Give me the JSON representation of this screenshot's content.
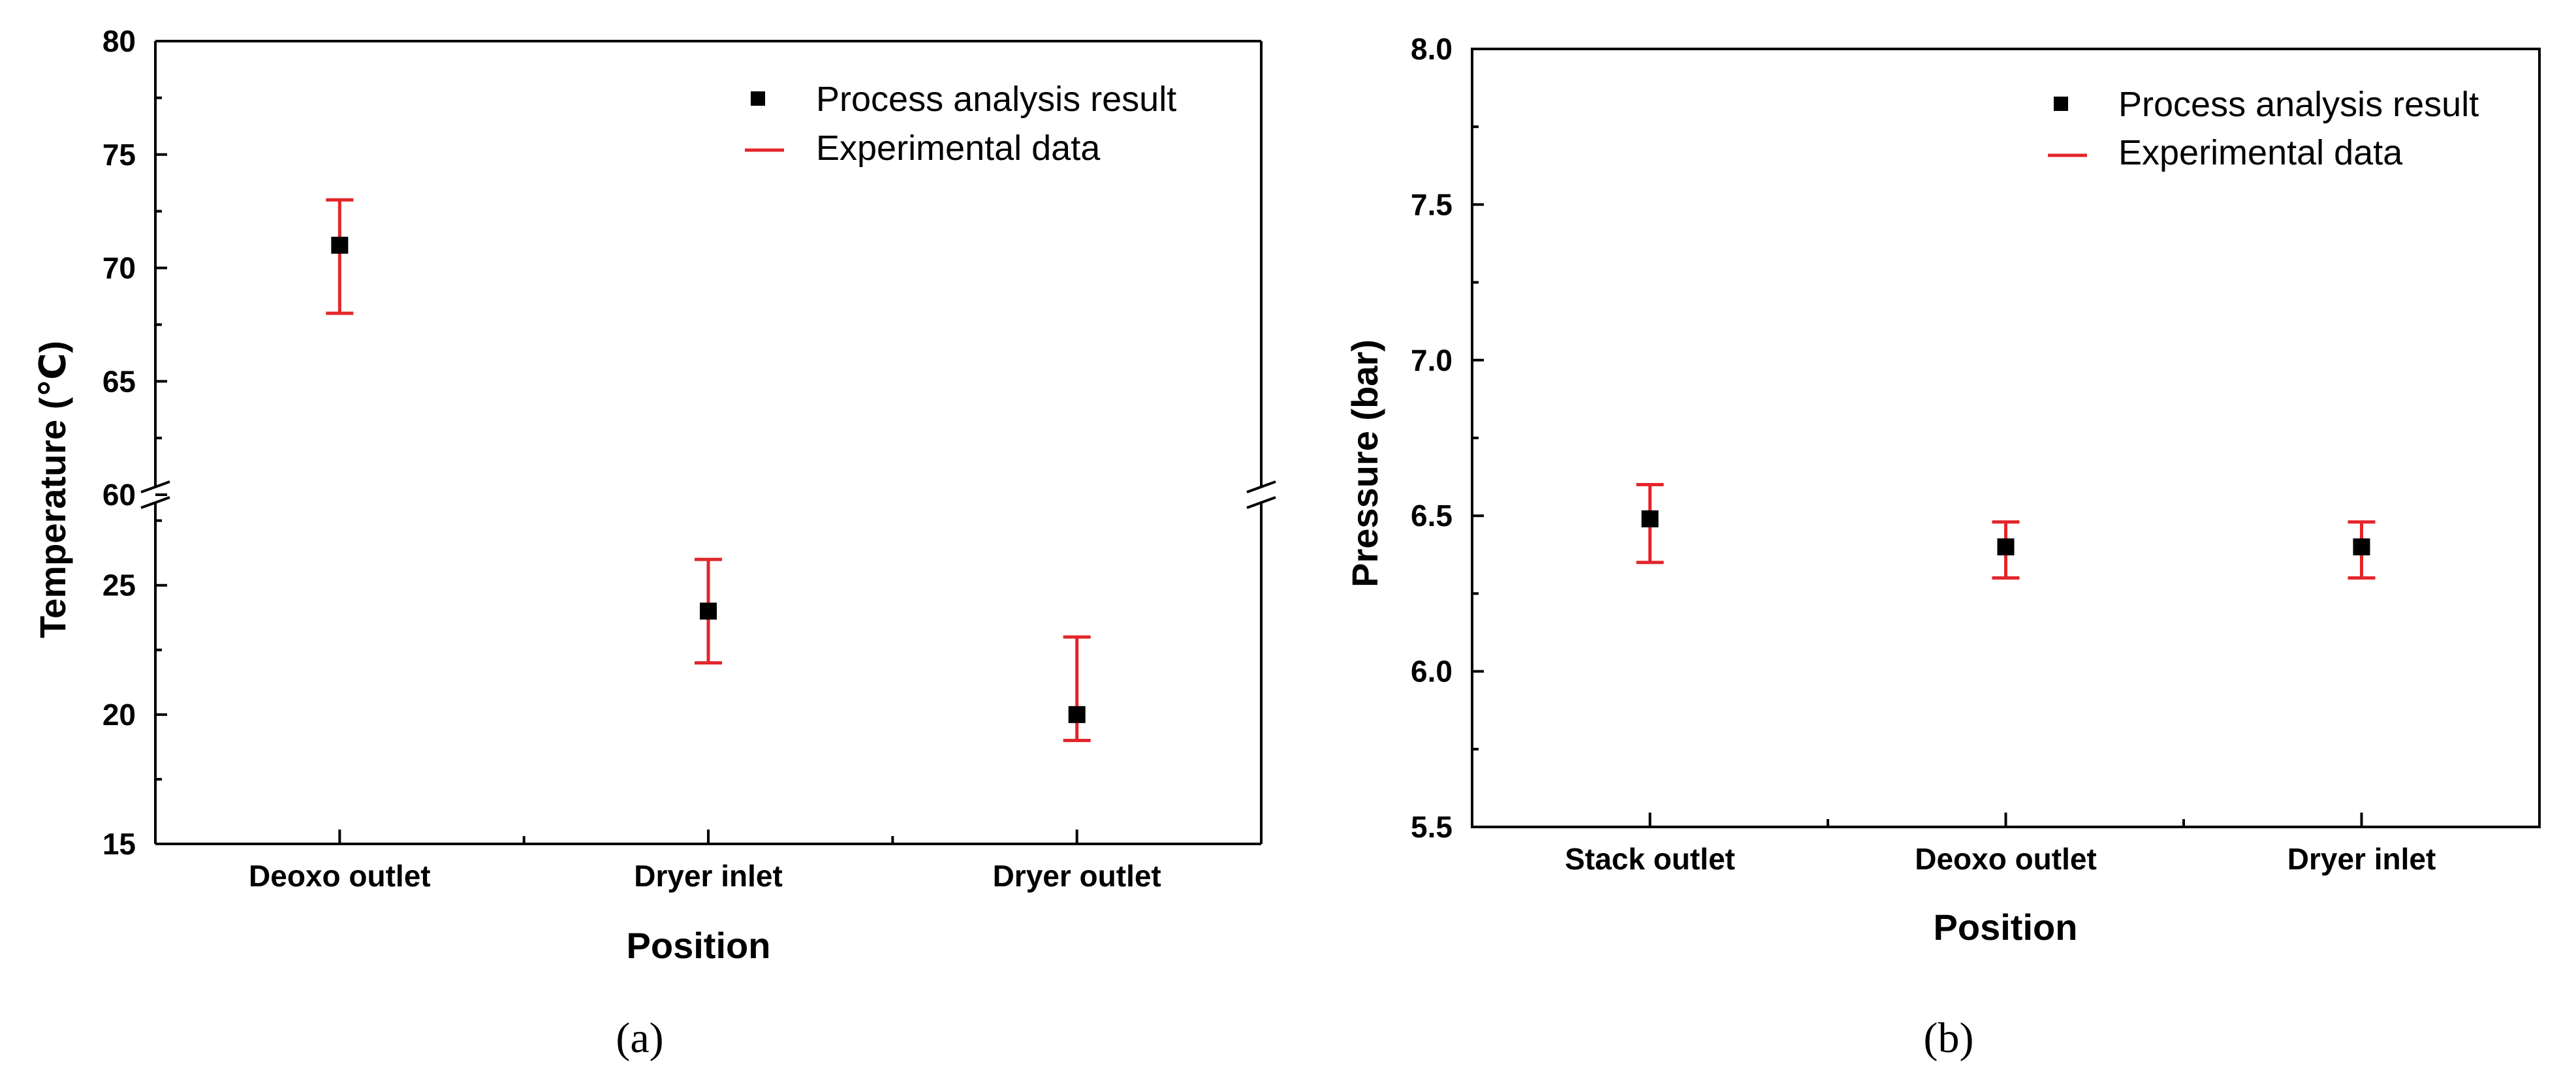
{
  "chart_data": [
    {
      "type": "scatter",
      "panel_label": "(a)",
      "categories": [
        "Deoxo outlet",
        "Dryer inlet",
        "Dryer outlet"
      ],
      "series": [
        {
          "name": "Process analysis result",
          "values": [
            71,
            24,
            20
          ],
          "marker": "square",
          "color": "#000000"
        },
        {
          "name": "Experimental data",
          "type": "errorbar",
          "color": "#e3262a",
          "low": [
            68,
            22,
            19
          ],
          "high": [
            73,
            26,
            23
          ]
        }
      ],
      "xlabel": "Position",
      "ylabel": "Temperature (℃)",
      "y_axis_broken": true,
      "y_segments": [
        {
          "ylim": [
            15,
            28.5
          ],
          "ticks": [
            "15",
            "20",
            "25"
          ]
        },
        {
          "ylim": [
            60,
            80
          ],
          "ticks": [
            "60",
            "65",
            "70",
            "75",
            "80"
          ]
        }
      ],
      "legend_position": "top-right",
      "grid": false
    },
    {
      "type": "scatter",
      "panel_label": "(b)",
      "categories": [
        "Stack outlet",
        "Deoxo outlet",
        "Dryer inlet"
      ],
      "series": [
        {
          "name": "Process analysis result",
          "values": [
            6.49,
            6.4,
            6.4
          ],
          "marker": "square",
          "color": "#000000"
        },
        {
          "name": "Experimental data",
          "type": "errorbar",
          "color": "#e3262a",
          "low": [
            6.35,
            6.3,
            6.3
          ],
          "high": [
            6.6,
            6.48,
            6.48
          ]
        }
      ],
      "xlabel": "Position",
      "ylabel": "Pressure (bar)",
      "ylim": [
        5.5,
        8.0
      ],
      "yticks": [
        "5.5",
        "6.0",
        "6.5",
        "7.0",
        "7.5",
        "8.0"
      ],
      "legend_position": "top-right",
      "grid": false
    }
  ]
}
